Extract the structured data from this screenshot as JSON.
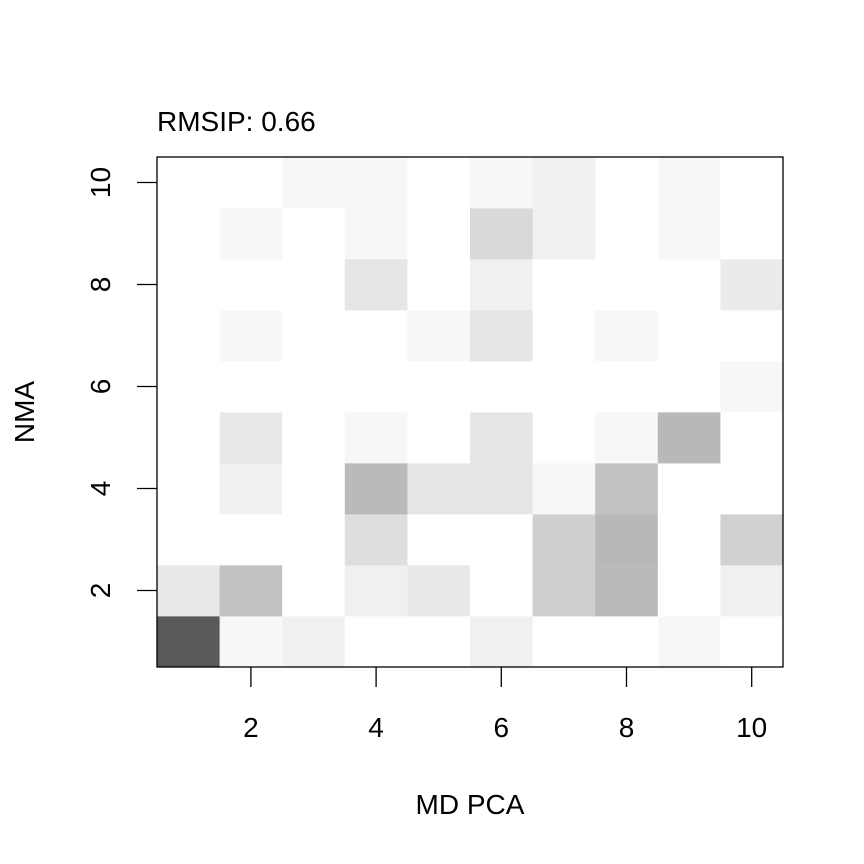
{
  "chart_data": {
    "type": "heatmap",
    "title": "RMSIP: 0.66",
    "xlabel": "MD PCA",
    "ylabel": "NMA",
    "x": [
      1,
      2,
      3,
      4,
      5,
      6,
      7,
      8,
      9,
      10
    ],
    "y": [
      1,
      2,
      3,
      4,
      5,
      6,
      7,
      8,
      9,
      10
    ],
    "xlim": [
      0.5,
      10.5
    ],
    "ylim": [
      0.5,
      10.5
    ],
    "x_ticks": [
      "2",
      "4",
      "6",
      "8",
      "10"
    ],
    "y_ticks": [
      "2",
      "4",
      "6",
      "8",
      "10"
    ],
    "color_scale": "white-to-black grayscale (darker = higher overlap)",
    "low_color": "#ffffff",
    "high_color": "#000000",
    "grid": false,
    "legend": "none",
    "z": [
      [
        0.65,
        0.03,
        0.06,
        0.0,
        0.0,
        0.06,
        0.0,
        0.0,
        0.03,
        0.0
      ],
      [
        0.09,
        0.24,
        0.0,
        0.06,
        0.09,
        0.0,
        0.19,
        0.27,
        0.0,
        0.06
      ],
      [
        0.0,
        0.0,
        0.0,
        0.13,
        0.0,
        0.0,
        0.19,
        0.28,
        0.0,
        0.18
      ],
      [
        0.0,
        0.06,
        0.0,
        0.27,
        0.1,
        0.1,
        0.03,
        0.24,
        0.0,
        0.0
      ],
      [
        0.0,
        0.09,
        0.0,
        0.03,
        0.0,
        0.1,
        0.0,
        0.03,
        0.28,
        0.0
      ],
      [
        0.0,
        0.0,
        0.0,
        0.0,
        0.0,
        0.0,
        0.0,
        0.0,
        0.0,
        0.03
      ],
      [
        0.0,
        0.03,
        0.0,
        0.0,
        0.03,
        0.1,
        0.0,
        0.03,
        0.0,
        0.0
      ],
      [
        0.0,
        0.0,
        0.0,
        0.1,
        0.0,
        0.06,
        0.0,
        0.0,
        0.0,
        0.08
      ],
      [
        0.0,
        0.03,
        0.0,
        0.03,
        0.0,
        0.15,
        0.06,
        0.0,
        0.03,
        0.0
      ],
      [
        0.0,
        0.0,
        0.03,
        0.03,
        0.0,
        0.03,
        0.06,
        0.0,
        0.03,
        0.0
      ]
    ]
  }
}
